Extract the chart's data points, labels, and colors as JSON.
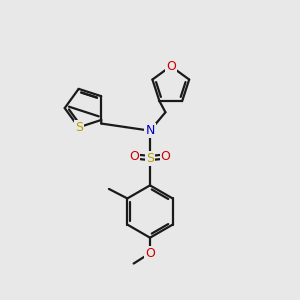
{
  "bg_color": "#e8e8e8",
  "bond_color": "#1a1a1a",
  "N_color": "#0000cc",
  "S_thio_color": "#b8a000",
  "S_sulfonyl_color": "#b8a000",
  "O_color": "#cc0000",
  "lw": 1.6,
  "fs": 9.0,
  "xlim": [
    0,
    10
  ],
  "ylim": [
    0,
    10
  ],
  "figsize": [
    3.0,
    3.0
  ],
  "dpi": 100
}
